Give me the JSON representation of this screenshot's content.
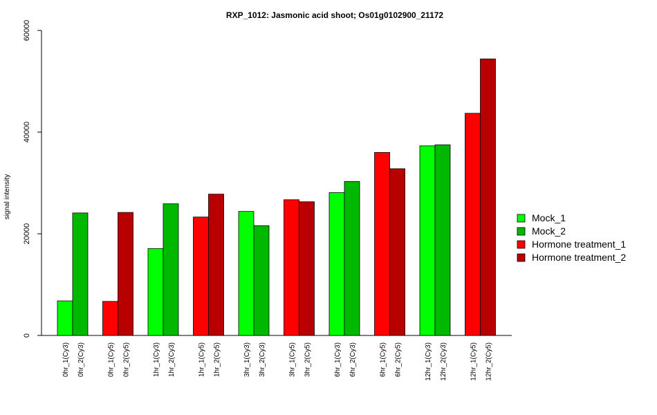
{
  "chart_data": {
    "type": "bar",
    "title": "RXP_1012: Jasmonic acid shoot; Os01g0102900_21172",
    "xlabel": "",
    "ylabel": "signal intensity",
    "ylim": [
      0,
      60000
    ],
    "yticks": [
      0,
      20000,
      40000,
      60000
    ],
    "grid": false,
    "legend_position": "right",
    "legend": [
      {
        "name": "Mock_1",
        "color": "#00ff00"
      },
      {
        "name": "Mock_2",
        "color": "#00b800"
      },
      {
        "name": "Hormone treatment_1",
        "color": "#ff0000"
      },
      {
        "name": "Hormone treatment_2",
        "color": "#b80000"
      }
    ],
    "bars": [
      {
        "label": "0hr_1(Cy3)",
        "value": 6800,
        "color": "#00ff00"
      },
      {
        "label": "0hr_2(Cy3)",
        "value": 24100,
        "color": "#00b800"
      },
      {
        "label": "0hr_1(Cy5)",
        "value": 6700,
        "color": "#ff0000"
      },
      {
        "label": "0hr_2(Cy5)",
        "value": 24200,
        "color": "#b80000"
      },
      {
        "label": "1hr_1(Cy3)",
        "value": 17100,
        "color": "#00ff00"
      },
      {
        "label": "1hr_2(Cy3)",
        "value": 25900,
        "color": "#00b800"
      },
      {
        "label": "1hr_1(Cy5)",
        "value": 23300,
        "color": "#ff0000"
      },
      {
        "label": "1hr_2(Cy5)",
        "value": 27800,
        "color": "#b80000"
      },
      {
        "label": "3hr_1(Cy3)",
        "value": 24400,
        "color": "#00ff00"
      },
      {
        "label": "3hr_2(Cy3)",
        "value": 21600,
        "color": "#00b800"
      },
      {
        "label": "3hr_1(Cy5)",
        "value": 26700,
        "color": "#ff0000"
      },
      {
        "label": "3hr_2(Cy5)",
        "value": 26300,
        "color": "#b80000"
      },
      {
        "label": "6hr_1(Cy3)",
        "value": 28100,
        "color": "#00ff00"
      },
      {
        "label": "6hr_2(Cy3)",
        "value": 30300,
        "color": "#00b800"
      },
      {
        "label": "6hr_1(Cy5)",
        "value": 36000,
        "color": "#ff0000"
      },
      {
        "label": "6hr_2(Cy5)",
        "value": 32800,
        "color": "#b80000"
      },
      {
        "label": "12hr_1(Cy3)",
        "value": 37300,
        "color": "#00ff00"
      },
      {
        "label": "12hr_2(Cy3)",
        "value": 37500,
        "color": "#00b800"
      },
      {
        "label": "12hr_1(Cy5)",
        "value": 43700,
        "color": "#ff0000"
      },
      {
        "label": "12hr_2(Cy5)",
        "value": 54400,
        "color": "#b80000"
      }
    ]
  }
}
